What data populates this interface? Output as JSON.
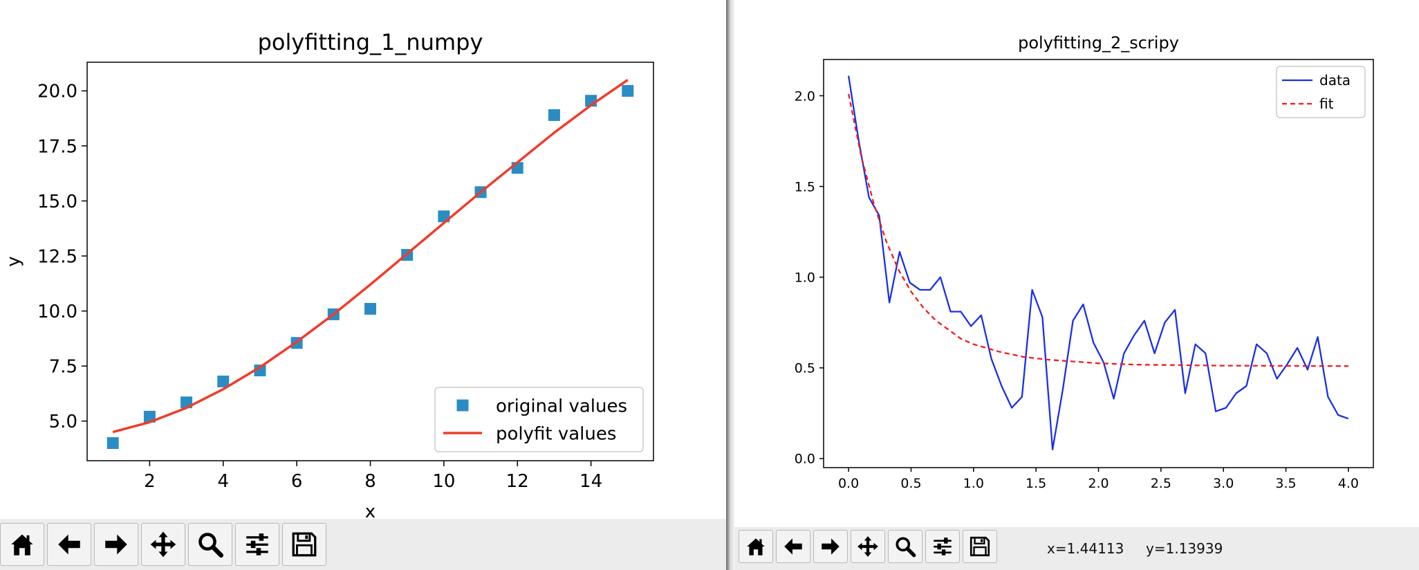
{
  "chart_data": [
    {
      "type": "scatter",
      "title": "polyfitting_1_numpy",
      "xlabel": "x",
      "ylabel": "y",
      "xlim": [
        0.3,
        15.7
      ],
      "ylim": [
        3.2,
        21.3
      ],
      "xticks": [
        2,
        4,
        6,
        8,
        10,
        12,
        14
      ],
      "yticks": [
        5.0,
        7.5,
        10.0,
        12.5,
        15.0,
        17.5,
        20.0
      ],
      "xtick_labels": [
        "2",
        "4",
        "6",
        "8",
        "10",
        "12",
        "14"
      ],
      "ytick_labels": [
        "5.0",
        "7.5",
        "10.0",
        "12.5",
        "15.0",
        "17.5",
        "20.0"
      ],
      "legend": "lower-right",
      "series": [
        {
          "name": "original values",
          "kind": "markers",
          "color": "#2b8cc4",
          "x": [
            1,
            2,
            3,
            4,
            5,
            6,
            7,
            8,
            9,
            10,
            11,
            12,
            13,
            14,
            15
          ],
          "y": [
            4.0,
            5.2,
            5.85,
            6.8,
            7.3,
            8.55,
            9.85,
            10.1,
            12.55,
            14.3,
            15.4,
            16.5,
            18.9,
            19.55,
            20.0
          ]
        },
        {
          "name": "polyfit values",
          "kind": "line",
          "color": "#f03c2a",
          "x": [
            1,
            2,
            3,
            4,
            5,
            6,
            7,
            8,
            9,
            10,
            11,
            12,
            13,
            14,
            15
          ],
          "y": [
            4.5,
            4.95,
            5.6,
            6.45,
            7.45,
            8.6,
            9.85,
            11.2,
            12.6,
            14.0,
            15.4,
            16.75,
            18.1,
            19.35,
            20.5
          ]
        }
      ]
    },
    {
      "type": "line",
      "title": "polyfitting_2_scripy",
      "xlabel": "",
      "ylabel": "",
      "xlim": [
        -0.2,
        4.2
      ],
      "ylim": [
        -0.05,
        2.2
      ],
      "xticks": [
        0.0,
        0.5,
        1.0,
        1.5,
        2.0,
        2.5,
        3.0,
        3.5,
        4.0
      ],
      "yticks": [
        0.0,
        0.5,
        1.0,
        1.5,
        2.0
      ],
      "xtick_labels": [
        "0.0",
        "0.5",
        "1.0",
        "1.5",
        "2.0",
        "2.5",
        "3.0",
        "3.5",
        "4.0"
      ],
      "ytick_labels": [
        "0.0",
        "0.5",
        "1.0",
        "1.5",
        "2.0"
      ],
      "legend": "top-right",
      "series": [
        {
          "name": "data",
          "kind": "line",
          "color": "#1a2fe8",
          "x": [
            0.0,
            0.0816,
            0.1633,
            0.2449,
            0.3265,
            0.4082,
            0.4898,
            0.5714,
            0.6531,
            0.7347,
            0.8163,
            0.898,
            0.9796,
            1.0612,
            1.1429,
            1.2245,
            1.3061,
            1.3878,
            1.4694,
            1.551,
            1.6327,
            1.7143,
            1.7959,
            1.8776,
            1.9592,
            2.0408,
            2.1224,
            2.2041,
            2.2857,
            2.3673,
            2.449,
            2.5306,
            2.6122,
            2.6939,
            2.7755,
            2.8571,
            2.9388,
            3.0204,
            3.102,
            3.1837,
            3.2653,
            3.3469,
            3.4286,
            3.5102,
            3.5918,
            3.6735,
            3.7551,
            3.8367,
            3.9184,
            4.0
          ],
          "y": [
            2.11,
            1.75,
            1.44,
            1.34,
            0.86,
            1.14,
            0.97,
            0.93,
            0.93,
            1.0,
            0.81,
            0.81,
            0.73,
            0.79,
            0.55,
            0.4,
            0.28,
            0.34,
            0.93,
            0.78,
            0.05,
            0.38,
            0.76,
            0.85,
            0.64,
            0.53,
            0.33,
            0.58,
            0.68,
            0.76,
            0.58,
            0.75,
            0.82,
            0.36,
            0.63,
            0.58,
            0.26,
            0.28,
            0.36,
            0.4,
            0.63,
            0.58,
            0.44,
            0.52,
            0.61,
            0.49,
            0.67,
            0.34,
            0.24,
            0.22
          ]
        },
        {
          "name": "fit",
          "kind": "dashed-line",
          "color": "#f21b1b",
          "x": [
            0.0,
            0.1,
            0.2,
            0.3,
            0.4,
            0.5,
            0.6,
            0.7,
            0.8,
            0.9,
            1.0,
            1.1,
            1.2,
            1.4,
            1.6,
            1.8,
            2.0,
            2.3,
            2.6,
            3.0,
            3.5,
            4.0
          ],
          "y": [
            2.01,
            1.67,
            1.41,
            1.2,
            1.04,
            0.92,
            0.83,
            0.76,
            0.71,
            0.66,
            0.63,
            0.61,
            0.59,
            0.56,
            0.545,
            0.535,
            0.525,
            0.518,
            0.515,
            0.512,
            0.511,
            0.51
          ]
        }
      ]
    }
  ],
  "toolbar_left": {
    "buttons": [
      {
        "name": "home",
        "icon": "home-icon"
      },
      {
        "name": "back",
        "icon": "arrow-left-icon"
      },
      {
        "name": "forward",
        "icon": "arrow-right-icon"
      },
      {
        "name": "pan",
        "icon": "move-icon"
      },
      {
        "name": "zoom",
        "icon": "magnifier-icon"
      },
      {
        "name": "configure",
        "icon": "sliders-icon"
      },
      {
        "name": "save",
        "icon": "floppy-disk-icon"
      }
    ]
  },
  "toolbar_right": {
    "buttons": [
      {
        "name": "home",
        "icon": "home-icon"
      },
      {
        "name": "back",
        "icon": "arrow-left-icon"
      },
      {
        "name": "forward",
        "icon": "arrow-right-icon"
      },
      {
        "name": "pan",
        "icon": "move-icon"
      },
      {
        "name": "zoom",
        "icon": "magnifier-icon"
      },
      {
        "name": "configure",
        "icon": "sliders-icon"
      },
      {
        "name": "save",
        "icon": "floppy-disk-icon"
      }
    ],
    "coord_x": "x=1.44113",
    "coord_y": "y=1.13939"
  }
}
